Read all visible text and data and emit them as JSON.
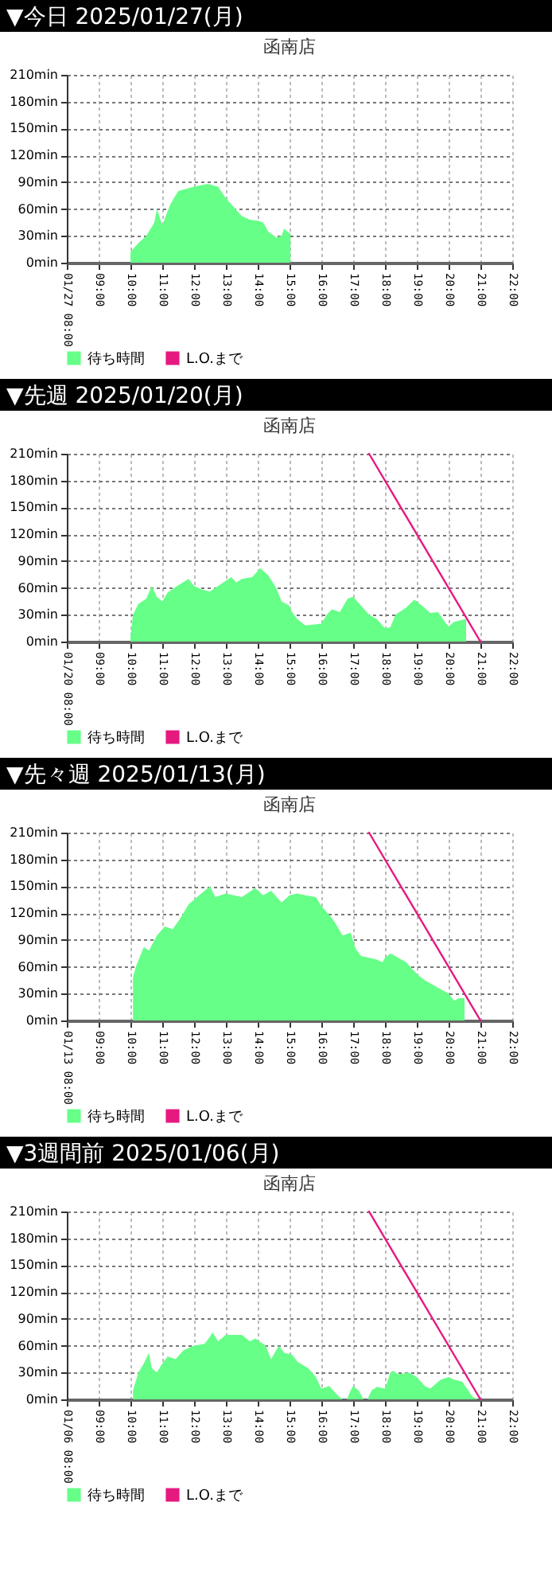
{
  "chart_data": [
    {
      "type": "area",
      "title": "▼今日 2025/01/27(月)",
      "subtitle": "函南店",
      "xlim": [
        8,
        22
      ],
      "xticks": [
        {
          "value": 8,
          "label": "01/27 08:00"
        },
        {
          "value": 9,
          "label": "09:00"
        },
        {
          "value": 10,
          "label": "10:00"
        },
        {
          "value": 11,
          "label": "11:00"
        },
        {
          "value": 12,
          "label": "12:00"
        },
        {
          "value": 13,
          "label": "13:00"
        },
        {
          "value": 14,
          "label": "14:00"
        },
        {
          "value": 15,
          "label": "15:00"
        },
        {
          "value": 16,
          "label": "16:00"
        },
        {
          "value": 17,
          "label": "17:00"
        },
        {
          "value": 18,
          "label": "18:00"
        },
        {
          "value": 19,
          "label": "19:00"
        },
        {
          "value": 20,
          "label": "20:00"
        },
        {
          "value": 21,
          "label": "21:00"
        },
        {
          "value": 22,
          "label": "22:00"
        }
      ],
      "ylim": [
        0,
        210
      ],
      "yticks": [
        {
          "value": 0,
          "label": "0min"
        },
        {
          "value": 30,
          "label": "30min"
        },
        {
          "value": 60,
          "label": "60min"
        },
        {
          "value": 90,
          "label": "90min"
        },
        {
          "value": 120,
          "label": "120min"
        },
        {
          "value": 150,
          "label": "150min"
        },
        {
          "value": 180,
          "label": "180min"
        },
        {
          "value": 210,
          "label": "210min"
        }
      ],
      "grid": true,
      "legend": "bottom left",
      "series": [
        {
          "name": "待ち時間",
          "color": "#66ff88",
          "x": [
            10.0,
            10.25,
            10.5,
            10.75,
            10.83,
            11.0,
            11.25,
            11.5,
            12.0,
            12.42,
            12.75,
            13.0,
            13.25,
            13.5,
            13.75,
            14.0,
            14.17,
            14.33,
            14.58,
            14.75,
            14.83,
            15.0,
            15.03
          ],
          "values": [
            12,
            22,
            30,
            45,
            60,
            42,
            65,
            80,
            85,
            88,
            85,
            72,
            62,
            52,
            48,
            47,
            45,
            35,
            28,
            30,
            38,
            33,
            33
          ]
        },
        {
          "name": "L.O.まで",
          "type": "line",
          "color": "#e6197f"
        }
      ]
    },
    {
      "type": "area",
      "title": "▼先週 2025/01/20(月)",
      "subtitle": "函南店",
      "xlim": [
        8,
        22
      ],
      "xticks": [
        {
          "value": 8,
          "label": "01/20 08:00"
        },
        {
          "value": 9,
          "label": "09:00"
        },
        {
          "value": 10,
          "label": "10:00"
        },
        {
          "value": 11,
          "label": "11:00"
        },
        {
          "value": 12,
          "label": "12:00"
        },
        {
          "value": 13,
          "label": "13:00"
        },
        {
          "value": 14,
          "label": "14:00"
        },
        {
          "value": 15,
          "label": "15:00"
        },
        {
          "value": 16,
          "label": "16:00"
        },
        {
          "value": 17,
          "label": "17:00"
        },
        {
          "value": 18,
          "label": "18:00"
        },
        {
          "value": 19,
          "label": "19:00"
        },
        {
          "value": 20,
          "label": "20:00"
        },
        {
          "value": 21,
          "label": "21:00"
        },
        {
          "value": 22,
          "label": "22:00"
        }
      ],
      "ylim": [
        0,
        210
      ],
      "yticks": [
        {
          "value": 0,
          "label": "0min"
        },
        {
          "value": 30,
          "label": "30min"
        },
        {
          "value": 60,
          "label": "60min"
        },
        {
          "value": 90,
          "label": "90min"
        },
        {
          "value": 120,
          "label": "120min"
        },
        {
          "value": 150,
          "label": "150min"
        },
        {
          "value": 180,
          "label": "180min"
        },
        {
          "value": 210,
          "label": "210min"
        }
      ],
      "grid": true,
      "legend": "bottom left",
      "series": [
        {
          "name": "待ち時間",
          "color": "#66ff88",
          "x": [
            10.0,
            10.08,
            10.25,
            10.5,
            10.67,
            10.83,
            11.0,
            11.17,
            11.5,
            11.83,
            12.0,
            12.25,
            12.5,
            13.0,
            13.17,
            13.33,
            13.5,
            13.83,
            14.08,
            14.33,
            14.58,
            14.75,
            15.0,
            15.08,
            15.25,
            15.5,
            16.0,
            16.17,
            16.33,
            16.58,
            16.83,
            17.0,
            17.25,
            17.5,
            17.75,
            18.0,
            18.17,
            18.33,
            18.67,
            18.92,
            19.17,
            19.42,
            19.67,
            19.92,
            20.0,
            20.17,
            20.5,
            20.55
          ],
          "values": [
            5,
            30,
            42,
            48,
            62,
            50,
            45,
            55,
            63,
            70,
            62,
            58,
            56,
            68,
            72,
            66,
            70,
            72,
            82,
            74,
            60,
            45,
            40,
            33,
            25,
            18,
            20,
            30,
            36,
            33,
            48,
            50,
            40,
            30,
            25,
            15,
            16,
            30,
            38,
            47,
            40,
            32,
            33,
            20,
            17,
            22,
            25,
            25
          ]
        },
        {
          "name": "L.O.まで",
          "type": "line",
          "color": "#e6197f",
          "x": [
            17.5,
            21
          ],
          "values": [
            210,
            0
          ]
        }
      ]
    },
    {
      "type": "area",
      "title": "▼先々週 2025/01/13(月)",
      "subtitle": "函南店",
      "xlim": [
        8,
        22
      ],
      "xticks": [
        {
          "value": 8,
          "label": "01/13 08:00"
        },
        {
          "value": 9,
          "label": "09:00"
        },
        {
          "value": 10,
          "label": "10:00"
        },
        {
          "value": 11,
          "label": "11:00"
        },
        {
          "value": 12,
          "label": "12:00"
        },
        {
          "value": 13,
          "label": "13:00"
        },
        {
          "value": 14,
          "label": "14:00"
        },
        {
          "value": 15,
          "label": "15:00"
        },
        {
          "value": 16,
          "label": "16:00"
        },
        {
          "value": 17,
          "label": "17:00"
        },
        {
          "value": 18,
          "label": "18:00"
        },
        {
          "value": 19,
          "label": "19:00"
        },
        {
          "value": 20,
          "label": "20:00"
        },
        {
          "value": 21,
          "label": "21:00"
        },
        {
          "value": 22,
          "label": "22:00"
        }
      ],
      "ylim": [
        0,
        210
      ],
      "yticks": [
        {
          "value": 0,
          "label": "0min"
        },
        {
          "value": 30,
          "label": "30min"
        },
        {
          "value": 60,
          "label": "60min"
        },
        {
          "value": 90,
          "label": "90min"
        },
        {
          "value": 120,
          "label": "120min"
        },
        {
          "value": 150,
          "label": "150min"
        },
        {
          "value": 180,
          "label": "180min"
        },
        {
          "value": 210,
          "label": "210min"
        }
      ],
      "grid": true,
      "legend": "bottom left",
      "series": [
        {
          "name": "待ち時間",
          "color": "#66ff88",
          "x": [
            10.08,
            10.17,
            10.42,
            10.58,
            10.83,
            11.08,
            11.33,
            11.58,
            11.83,
            12.0,
            12.33,
            12.5,
            12.67,
            13.0,
            13.25,
            13.5,
            13.92,
            14.17,
            14.42,
            14.75,
            15.0,
            15.25,
            15.5,
            15.83,
            16.0,
            16.25,
            16.42,
            16.67,
            16.92,
            17.08,
            17.25,
            17.5,
            17.75,
            17.92,
            18.0,
            18.17,
            18.42,
            18.67,
            19.0,
            19.25,
            19.5,
            19.75,
            20.0,
            20.17,
            20.33,
            20.5
          ],
          "values": [
            48,
            60,
            82,
            78,
            95,
            105,
            102,
            115,
            130,
            135,
            145,
            150,
            138,
            142,
            140,
            138,
            148,
            140,
            145,
            132,
            140,
            142,
            140,
            138,
            128,
            118,
            110,
            95,
            98,
            80,
            72,
            70,
            68,
            65,
            70,
            75,
            70,
            65,
            52,
            45,
            40,
            35,
            30,
            22,
            25,
            25
          ]
        },
        {
          "name": "L.O.まで",
          "type": "line",
          "color": "#e6197f",
          "x": [
            17.5,
            21
          ],
          "values": [
            210,
            0
          ]
        }
      ]
    },
    {
      "type": "area",
      "title": "▼3週間前 2025/01/06(月)",
      "subtitle": "函南店",
      "xlim": [
        8,
        22
      ],
      "xticks": [
        {
          "value": 8,
          "label": "01/06 08:00"
        },
        {
          "value": 9,
          "label": "09:00"
        },
        {
          "value": 10,
          "label": "10:00"
        },
        {
          "value": 11,
          "label": "11:00"
        },
        {
          "value": 12,
          "label": "12:00"
        },
        {
          "value": 13,
          "label": "13:00"
        },
        {
          "value": 14,
          "label": "14:00"
        },
        {
          "value": 15,
          "label": "15:00"
        },
        {
          "value": 16,
          "label": "16:00"
        },
        {
          "value": 17,
          "label": "17:00"
        },
        {
          "value": 18,
          "label": "18:00"
        },
        {
          "value": 19,
          "label": "19:00"
        },
        {
          "value": 20,
          "label": "20:00"
        },
        {
          "value": 21,
          "label": "21:00"
        },
        {
          "value": 22,
          "label": "22:00"
        }
      ],
      "ylim": [
        0,
        210
      ],
      "yticks": [
        {
          "value": 0,
          "label": "0min"
        },
        {
          "value": 30,
          "label": "30min"
        },
        {
          "value": 60,
          "label": "60min"
        },
        {
          "value": 90,
          "label": "90min"
        },
        {
          "value": 120,
          "label": "120min"
        },
        {
          "value": 150,
          "label": "150min"
        },
        {
          "value": 180,
          "label": "180min"
        },
        {
          "value": 210,
          "label": "210min"
        }
      ],
      "grid": true,
      "legend": "bottom left",
      "series": [
        {
          "name": "待ち時間",
          "color": "#66ff88",
          "x": [
            10.08,
            10.25,
            10.42,
            10.58,
            10.67,
            10.83,
            11.0,
            11.17,
            11.42,
            11.67,
            12.0,
            12.33,
            12.5,
            12.58,
            12.75,
            13.0,
            13.5,
            13.75,
            13.92,
            14.25,
            14.42,
            14.58,
            14.67,
            14.83,
            15.08,
            15.25,
            15.58,
            15.83,
            16.0,
            16.25,
            16.5,
            16.67,
            16.8,
            16.92,
            17.0,
            17.17,
            17.33,
            17.45,
            17.58,
            17.75,
            18.0,
            18.17,
            18.25,
            18.42,
            18.75,
            19.0,
            19.25,
            19.42,
            19.75,
            20.0,
            20.17,
            20.42,
            20.58,
            20.75,
            20.92
          ],
          "values": [
            10,
            30,
            40,
            52,
            35,
            30,
            40,
            48,
            45,
            55,
            60,
            62,
            70,
            75,
            65,
            72,
            72,
            65,
            68,
            60,
            45,
            55,
            60,
            52,
            50,
            42,
            35,
            25,
            12,
            15,
            5,
            0,
            0,
            10,
            15,
            10,
            0,
            0,
            10,
            14,
            12,
            30,
            32,
            28,
            30,
            25,
            15,
            12,
            22,
            25,
            22,
            20,
            12,
            3,
            0
          ]
        },
        {
          "name": "L.O.まで",
          "type": "line",
          "color": "#e6197f",
          "x": [
            17.5,
            21
          ],
          "values": [
            210,
            0
          ]
        }
      ]
    }
  ]
}
